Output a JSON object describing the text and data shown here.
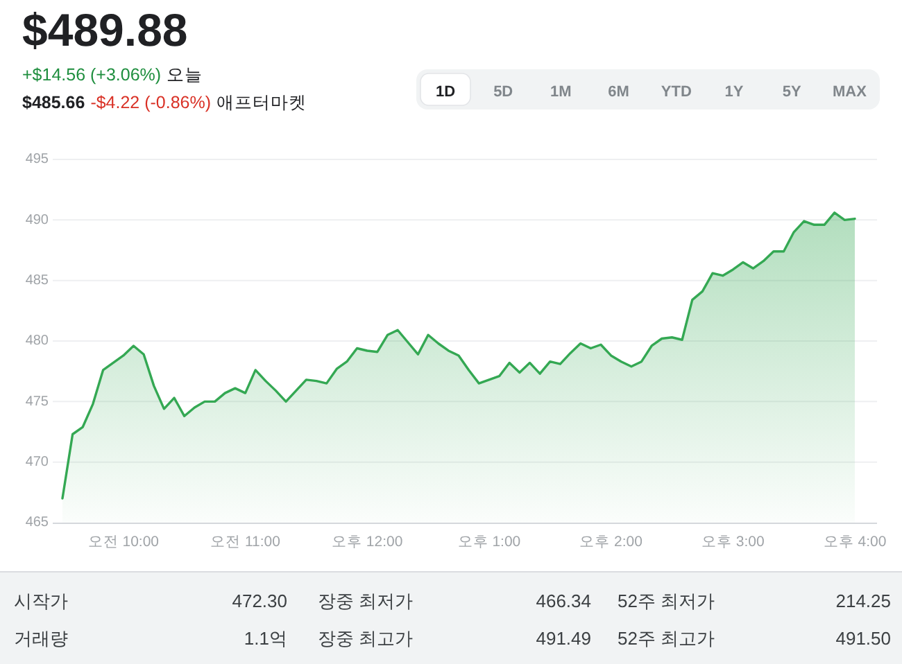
{
  "chart_data": {
    "type": "area",
    "title": "$489.88",
    "annotations": [
      "+$14.56 (+3.06%)",
      "오늘",
      "$485.66",
      "-$4.22 (-0.86%)",
      "애프터마켓",
      "1D",
      "5D",
      "1M",
      "6M",
      "YTD",
      "1Y",
      "5Y",
      "MAX",
      "시작가",
      "472.30",
      "장중 최저가",
      "466.34",
      "52주 최저가",
      "214.25",
      "거래량",
      "1.1억",
      "장중 최고가",
      "491.49",
      "52주 최고가",
      "491.50"
    ],
    "categories": [
      null,
      null,
      null,
      null,
      null,
      null,
      "오전 10:00",
      null,
      null,
      null,
      null,
      null,
      null,
      null,
      null,
      null,
      null,
      null,
      "오전 11:00",
      null,
      null,
      null,
      null,
      null,
      null,
      null,
      null,
      null,
      null,
      null,
      "오후 12:00",
      null,
      null,
      null,
      null,
      null,
      null,
      null,
      null,
      null,
      null,
      null,
      "오후 1:00",
      null,
      null,
      null,
      null,
      null,
      null,
      null,
      null,
      null,
      null,
      null,
      "오후 2:00",
      null,
      null,
      null,
      null,
      null,
      null,
      null,
      null,
      null,
      null,
      null,
      "오후 3:00",
      null,
      null,
      null,
      null,
      null,
      null,
      null,
      null,
      null,
      null,
      null,
      "오후 4:00"
    ],
    "values": [
      467.0,
      472.3,
      472.9,
      474.8,
      477.6,
      478.2,
      478.8,
      479.6,
      478.9,
      476.3,
      474.4,
      475.3,
      473.8,
      474.5,
      475.0,
      475.0,
      475.7,
      476.1,
      475.7,
      477.6,
      476.7,
      475.9,
      475.0,
      475.9,
      476.8,
      476.7,
      476.5,
      477.7,
      478.3,
      479.4,
      479.2,
      479.1,
      480.5,
      480.9,
      479.9,
      478.9,
      480.5,
      479.8,
      479.2,
      478.8,
      477.6,
      476.5,
      476.8,
      477.1,
      478.2,
      477.4,
      478.2,
      477.3,
      478.3,
      478.1,
      479.0,
      479.8,
      479.4,
      479.7,
      478.8,
      478.3,
      477.9,
      478.3,
      479.6,
      480.2,
      480.3,
      480.1,
      483.4,
      484.1,
      485.6,
      485.4,
      485.9,
      486.5,
      486.0,
      486.6,
      487.4,
      487.4,
      489.0,
      489.9,
      489.6,
      489.6,
      490.6,
      490.0,
      490.1
    ],
    "color": "#34a853",
    "ylim": [
      465,
      495
    ],
    "yticks": [
      465,
      470,
      475,
      480,
      485,
      490,
      495
    ],
    "grid": "y"
  }
}
